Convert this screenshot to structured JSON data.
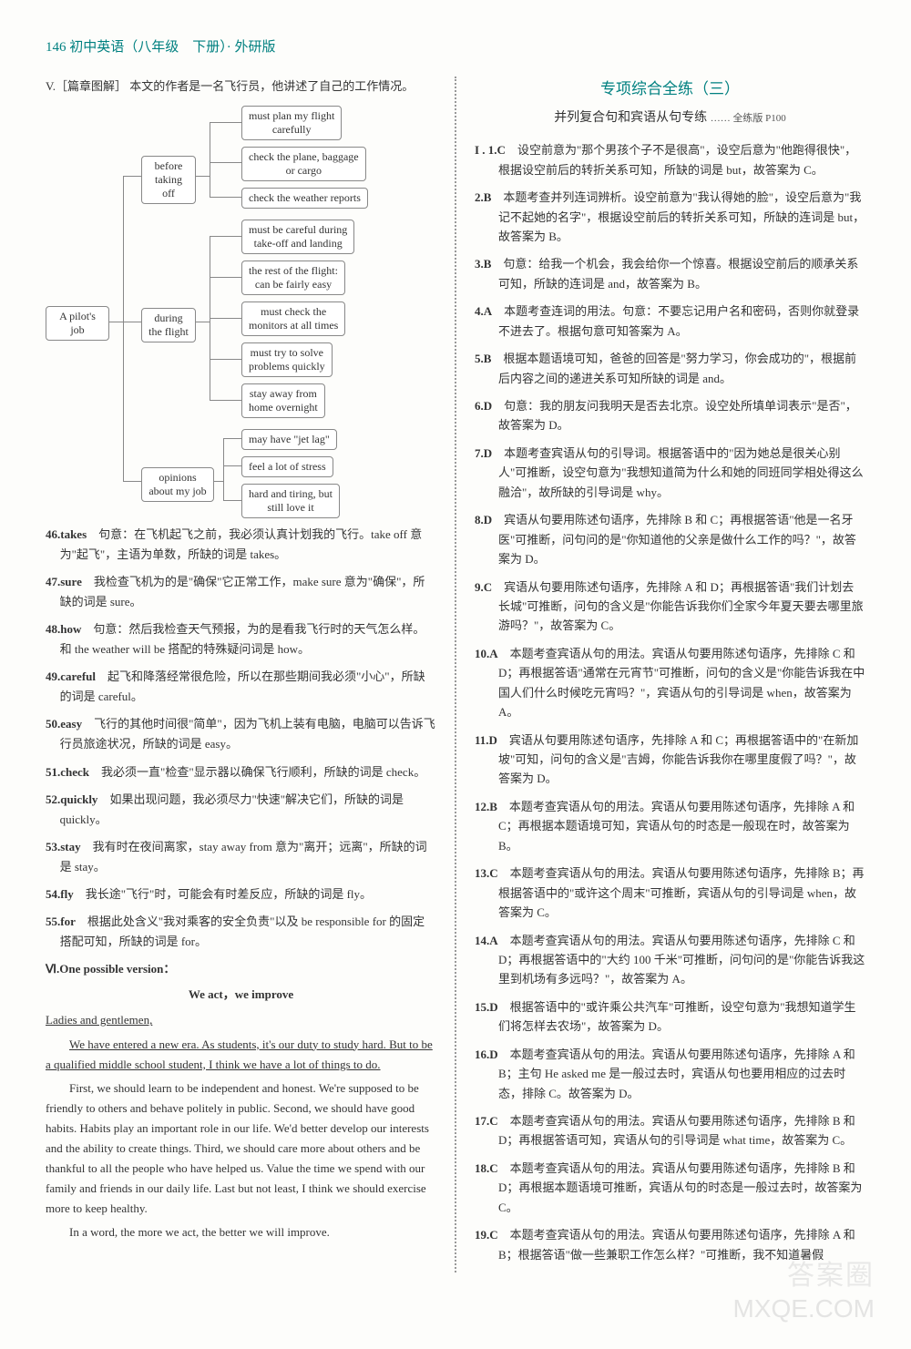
{
  "header": "146 初中英语（八年级　下册）· 外研版",
  "sectionV": {
    "intro_label": "V.［篇章图解］",
    "intro_text": "本文的作者是一名飞行员，他讲述了自己的工作情况。"
  },
  "diagram": {
    "root": "A pilot's\njob",
    "group1": "before\ntaking\noff",
    "group2": "during\nthe flight",
    "group3": "opinions\nabout my job",
    "g1a": "must plan my flight\ncarefully",
    "g1b": "check the plane, baggage\nor cargo",
    "g1c": "check the weather reports",
    "g2a": "must be careful during\ntake-off and landing",
    "g2b": "the rest of the flight:\ncan be fairly easy",
    "g2c": "must check the\nmonitors at all times",
    "g2d": "must try to solve\nproblems quickly",
    "g2e": "stay away from\nhome overnight",
    "g3a": "may have \"jet lag\"",
    "g3b": "feel a lot of stress",
    "g3c": "hard and tiring, but\nstill love it"
  },
  "itemsLeft": [
    {
      "n": "46",
      "w": "takes",
      "t": "句意：在飞机起飞之前，我必须认真计划我的飞行。take off 意为\"起飞\"，主语为单数，所缺的词是 takes。"
    },
    {
      "n": "47",
      "w": "sure",
      "t": "我检查飞机为的是\"确保\"它正常工作，make sure 意为\"确保\"，所缺的词是 sure。"
    },
    {
      "n": "48",
      "w": "how",
      "t": "句意：然后我检查天气预报，为的是看我飞行时的天气怎么样。和 the weather will be 搭配的特殊疑问词是 how。"
    },
    {
      "n": "49",
      "w": "careful",
      "t": "起飞和降落经常很危险，所以在那些期间我必须\"小心\"，所缺的词是 careful。"
    },
    {
      "n": "50",
      "w": "easy",
      "t": "飞行的其他时间很\"简单\"，因为飞机上装有电脑，电脑可以告诉飞行员旅途状况，所缺的词是 easy。"
    },
    {
      "n": "51",
      "w": "check",
      "t": "我必须一直\"检查\"显示器以确保飞行顺利，所缺的词是 check。"
    },
    {
      "n": "52",
      "w": "quickly",
      "t": "如果出现问题，我必须尽力\"快速\"解决它们，所缺的词是 quickly。"
    },
    {
      "n": "53",
      "w": "stay",
      "t": "我有时在夜间离家，stay away from 意为\"离开；远离\"，所缺的词是 stay。"
    },
    {
      "n": "54",
      "w": "fly",
      "t": "我长途\"飞行\"时，可能会有时差反应，所缺的词是 fly。"
    },
    {
      "n": "55",
      "w": "for",
      "t": "根据此处含义\"我对乘客的安全负责\"以及 be responsible for 的固定搭配可知，所缺的词是 for。"
    }
  ],
  "sectionVI": {
    "label": "Ⅵ.One possible version：",
    "title": "We act，we improve",
    "salutation": "Ladies and gentlemen,",
    "p1": "We have entered a new era. As students, it's our duty to study hard. But to be a qualified middle school student, I think we have a lot of things to do.",
    "p2": "First, we should learn to be independent and honest. We're supposed to be friendly to others and behave politely in public. Second, we should have good habits. Habits play an important role in our life. We'd better develop our interests and the ability to create things. Third, we should care more about others and be thankful to all the people who have helped us. Value the time we spend with our family and friends in our daily life. Last but not least, I think we should exercise more to keep healthy.",
    "p3": "In a word, the more we act, the better we will improve."
  },
  "right": {
    "title": "专项综合全练（三）",
    "subtitle_a": "并列复合句和宾语从句专练",
    "subtitle_b": "…… 全练版 P100",
    "items": [
      {
        "n": "I . 1",
        "a": "C",
        "t": "设空前意为\"那个男孩个子不是很高\"，设空后意为\"他跑得很快\"，根据设空前后的转折关系可知，所缺的词是 but，故答案为 C。"
      },
      {
        "n": "2",
        "a": "B",
        "t": "本题考查并列连词辨析。设空前意为\"我认得她的脸\"，设空后意为\"我记不起她的名字\"，根据设空前后的转折关系可知，所缺的连词是 but，故答案为 B。"
      },
      {
        "n": "3",
        "a": "B",
        "t": "句意：给我一个机会，我会给你一个惊喜。根据设空前后的顺承关系可知，所缺的连词是 and，故答案为 B。"
      },
      {
        "n": "4",
        "a": "A",
        "t": "本题考查连词的用法。句意：不要忘记用户名和密码，否则你就登录不进去了。根据句意可知答案为 A。"
      },
      {
        "n": "5",
        "a": "B",
        "t": "根据本题语境可知，爸爸的回答是\"努力学习，你会成功的\"，根据前后内容之间的递进关系可知所缺的词是 and。"
      },
      {
        "n": "6",
        "a": "D",
        "t": "句意：我的朋友问我明天是否去北京。设空处所填单词表示\"是否\"，故答案为 D。"
      },
      {
        "n": "7",
        "a": "D",
        "t": "本题考查宾语从句的引导词。根据答语中的\"因为她总是很关心别人\"可推断，设空句意为\"我想知道简为什么和她的同班同学相处得这么融洽\"，故所缺的引导词是 why。"
      },
      {
        "n": "8",
        "a": "D",
        "t": "宾语从句要用陈述句语序，先排除 B 和 C；再根据答语\"他是一名牙医\"可推断，问句问的是\"你知道他的父亲是做什么工作的吗？\"，故答案为 D。"
      },
      {
        "n": "9",
        "a": "C",
        "t": "宾语从句要用陈述句语序，先排除 A 和 D；再根据答语\"我们计划去长城\"可推断，问句的含义是\"你能告诉我你们全家今年夏天要去哪里旅游吗？\"，故答案为 C。"
      },
      {
        "n": "10",
        "a": "A",
        "t": "本题考查宾语从句的用法。宾语从句要用陈述句语序，先排除 C 和 D；再根据答语\"通常在元宵节\"可推断，问句的含义是\"你能告诉我在中国人们什么时候吃元宵吗？\"，宾语从句的引导词是 when，故答案为 A。"
      },
      {
        "n": "11",
        "a": "D",
        "t": "宾语从句要用陈述句语序，先排除 A 和 C；再根据答语中的\"在新加坡\"可知，问句的含义是\"吉姆，你能告诉我你在哪里度假了吗？\"，故答案为 D。"
      },
      {
        "n": "12",
        "a": "B",
        "t": "本题考查宾语从句的用法。宾语从句要用陈述句语序，先排除 A 和 C；再根据本题语境可知，宾语从句的时态是一般现在时，故答案为 B。"
      },
      {
        "n": "13",
        "a": "C",
        "t": "本题考查宾语从句的用法。宾语从句要用陈述句语序，先排除 B；再根据答语中的\"或许这个周末\"可推断，宾语从句的引导词是 when，故答案为 C。"
      },
      {
        "n": "14",
        "a": "A",
        "t": "本题考查宾语从句的用法。宾语从句要用陈述句语序，先排除 C 和 D；再根据答语中的\"大约 100 千米\"可推断，问句问的是\"你能告诉我这里到机场有多远吗？\"，故答案为 A。"
      },
      {
        "n": "15",
        "a": "D",
        "t": "根据答语中的\"或许乘公共汽车\"可推断，设空句意为\"我想知道学生们将怎样去农场\"，故答案为 D。"
      },
      {
        "n": "16",
        "a": "D",
        "t": "本题考查宾语从句的用法。宾语从句要用陈述句语序，先排除 A 和 B；主句 He asked me 是一般过去时，宾语从句也要用相应的过去时态，排除 C。故答案为 D。"
      },
      {
        "n": "17",
        "a": "C",
        "t": "本题考查宾语从句的用法。宾语从句要用陈述句语序，先排除 B 和 D；再根据答语可知，宾语从句的引导词是 what time，故答案为 C。"
      },
      {
        "n": "18",
        "a": "C",
        "t": "本题考查宾语从句的用法。宾语从句要用陈述句语序，先排除 B 和 D；再根据本题语境可推断，宾语从句的时态是一般过去时，故答案为 C。"
      },
      {
        "n": "19",
        "a": "C",
        "t": "本题考查宾语从句的用法。宾语从句要用陈述句语序，先排除 A 和 B；根据答语\"做一些兼职工作怎么样？\"可推断，我不知道暑假"
      }
    ]
  },
  "watermark_cn": "答案圈",
  "watermark_url": "MXQE.COM"
}
